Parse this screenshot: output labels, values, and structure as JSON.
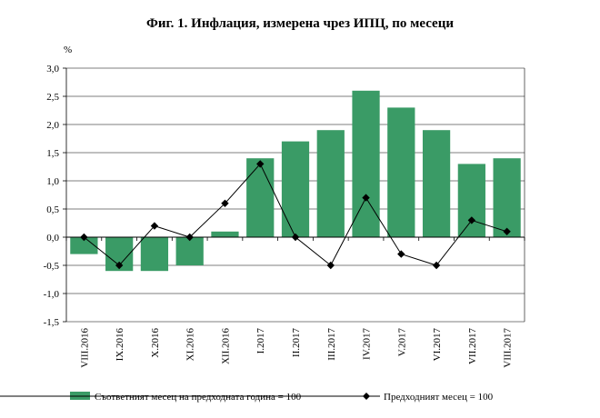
{
  "chart_data": {
    "type": "bar",
    "title": "Фиг. 1. Инфлация, измерена чрез ИПЦ, по месеци",
    "ylabel": "%",
    "xlabel": "",
    "ylim": [
      -1.5,
      3.0
    ],
    "ytick_step": 0.5,
    "ytick_labels": [
      "-1,5",
      "-1,0",
      "-0,5",
      "0,0",
      "0,5",
      "1,0",
      "1,5",
      "2,0",
      "2,5",
      "3,0"
    ],
    "grid": true,
    "legend_position": "bottom",
    "categories": [
      "VIII.2016",
      "IX.2016",
      "X.2016",
      "XI.2016",
      "XII.2016",
      "I.2017",
      "II.2017",
      "III.2017",
      "IV.2017",
      "V.2017",
      "VI.2017",
      "VII.2017",
      "VIII.2017"
    ],
    "series": [
      {
        "name": "Съответният месец на предходната година = 100",
        "type": "bar",
        "color": "#3a9b66",
        "values": [
          -0.3,
          -0.6,
          -0.6,
          -0.5,
          0.1,
          1.4,
          1.7,
          1.9,
          2.6,
          2.3,
          1.9,
          1.3,
          1.4
        ]
      },
      {
        "name": "Предходният месец = 100",
        "type": "line",
        "color": "#000000",
        "marker": "diamond",
        "values": [
          0.0,
          -0.5,
          0.2,
          0.0,
          0.6,
          1.3,
          0.0,
          -0.5,
          0.7,
          -0.3,
          -0.5,
          0.3,
          0.1
        ]
      }
    ]
  }
}
